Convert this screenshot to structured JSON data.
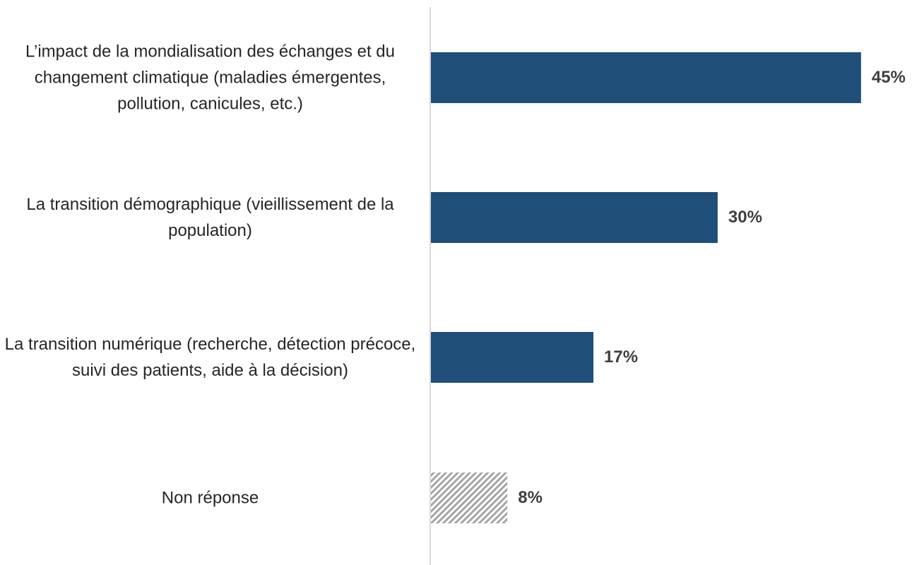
{
  "chart_data": {
    "type": "bar",
    "orientation": "horizontal",
    "categories": [
      "L’impact de la mondialisation des échanges et du changement climatique (maladies émergentes, pollution, canicules, etc.)",
      "La transition démographique (vieillissement de la population)",
      "La transition numérique (recherche, détection précoce, suivi des patients, aide à la décision)",
      "Non réponse"
    ],
    "values": [
      45,
      30,
      17,
      8
    ],
    "value_labels": [
      "45%",
      "30%",
      "17%",
      "8%"
    ],
    "colors": [
      "#1f4e79",
      "#1f4e79",
      "#1f4e79",
      "#a6a6a6"
    ],
    "hatched": [
      false,
      false,
      false,
      true
    ]
  }
}
